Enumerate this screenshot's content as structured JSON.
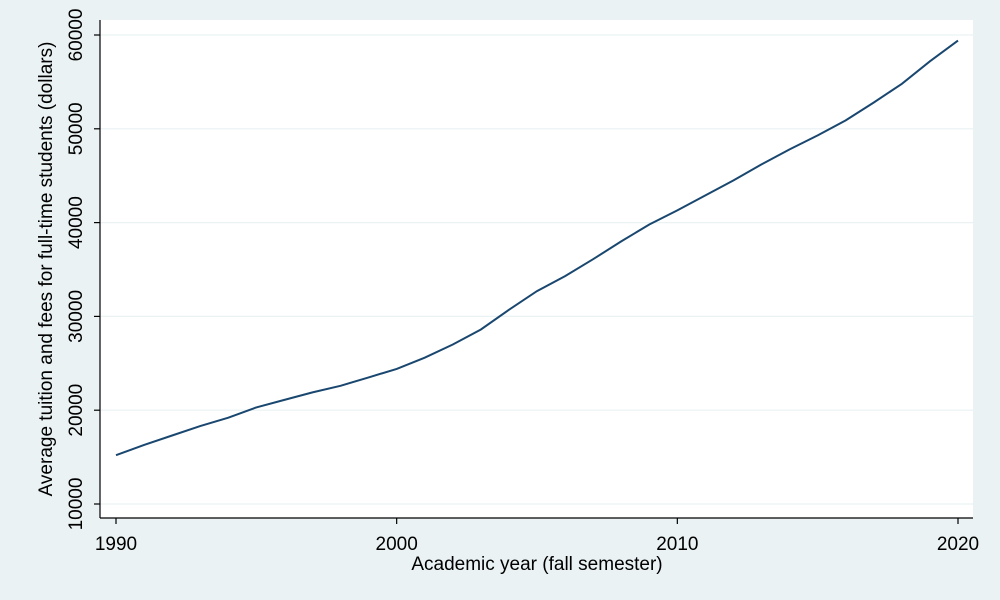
{
  "chart_data": {
    "type": "line",
    "title": "",
    "xlabel": "Academic year (fall semester)",
    "ylabel": "Average tuition and fees for full-time students (dollars)",
    "xlim": [
      1990,
      2020
    ],
    "ylim": [
      10000,
      60000
    ],
    "xticks": [
      1990,
      2000,
      2010,
      2020
    ],
    "yticks": [
      10000,
      20000,
      30000,
      40000,
      50000,
      60000
    ],
    "grid": true,
    "legend": "none",
    "colors": {
      "line": "#1a476f",
      "plot_bg": "#ffffff",
      "outer_bg": "#eaf2f3",
      "grid": "#eaf2f3"
    },
    "series": [
      {
        "x": [
          1990,
          1991,
          1992,
          1993,
          1994,
          1995,
          1996,
          1997,
          1998,
          1999,
          2000,
          2001,
          2002,
          2003,
          2004,
          2005,
          2006,
          2007,
          2008,
          2009,
          2010,
          2011,
          2012,
          2013,
          2014,
          2015,
          2016,
          2017,
          2018,
          2019,
          2020
        ],
        "y": [
          15200,
          16300,
          17300,
          18300,
          19200,
          20300,
          21100,
          21900,
          22600,
          23500,
          24400,
          25600,
          27000,
          28600,
          30700,
          32700,
          34300,
          36100,
          38000,
          39800,
          41300,
          42900,
          44500,
          46200,
          47800,
          49300,
          50900,
          52800,
          54800,
          57200,
          59400
        ]
      }
    ]
  }
}
